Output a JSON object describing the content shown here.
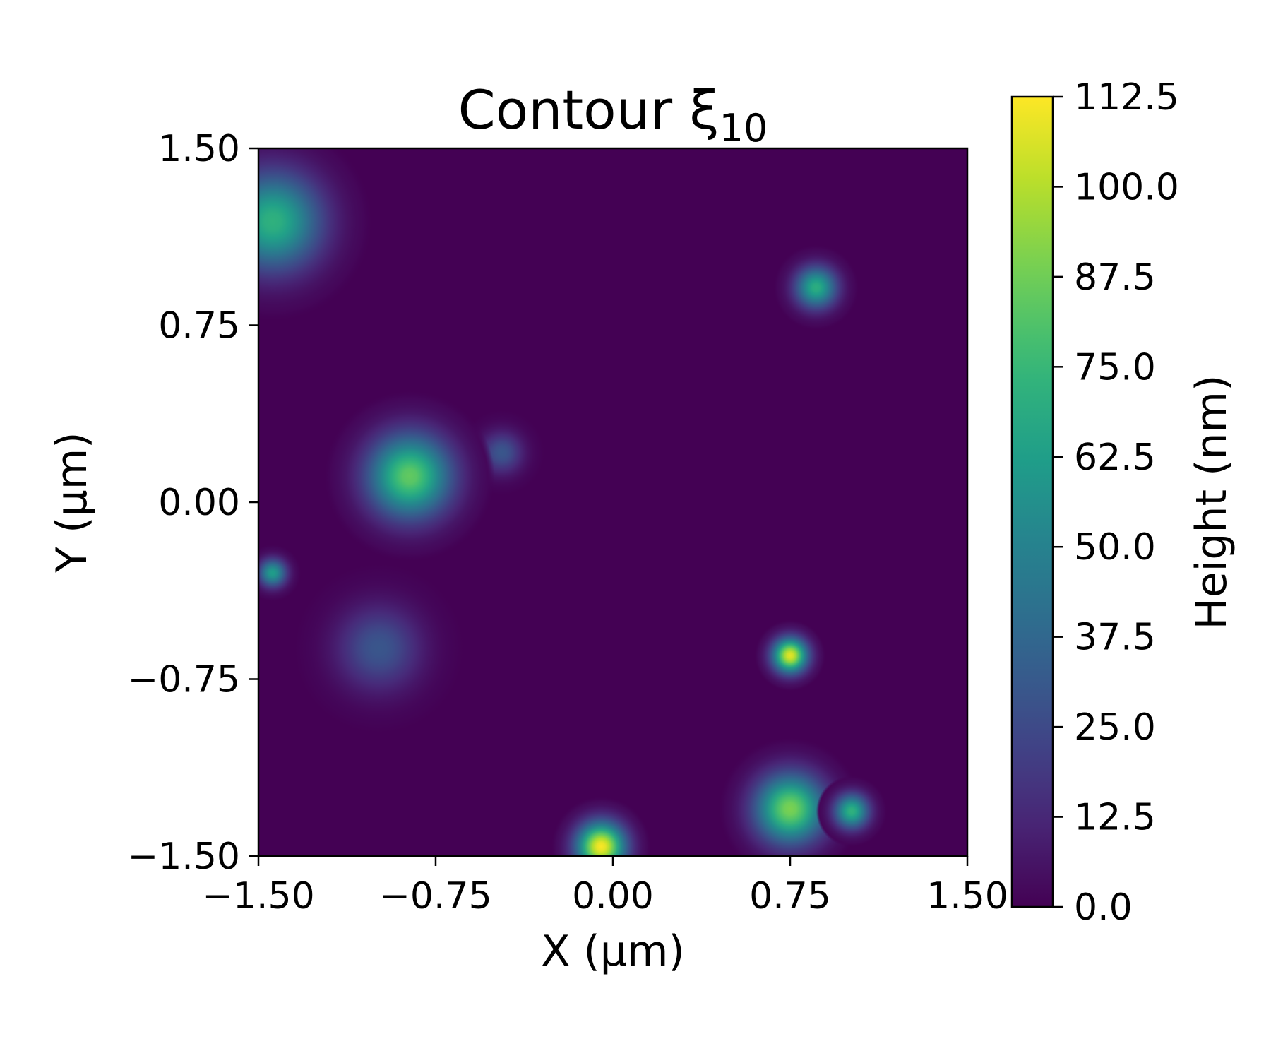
{
  "chart_data": {
    "type": "heatmap",
    "title": "Contour ξ",
    "title_subscript": "10",
    "xlabel": "X (μm)",
    "ylabel": "Y (μm)",
    "xlim": [
      -1.5,
      1.5
    ],
    "ylim": [
      -1.5,
      1.5
    ],
    "x_ticks": [
      -1.5,
      -0.75,
      0.0,
      0.75,
      1.5
    ],
    "y_ticks": [
      -1.5,
      -0.75,
      0.0,
      0.75,
      1.5
    ],
    "x_tick_labels": [
      "−1.50",
      "−0.75",
      "0.00",
      "0.75",
      "1.50"
    ],
    "y_tick_labels": [
      "−1.50",
      "−0.75",
      "0.00",
      "0.75",
      "1.50"
    ],
    "colormap": "viridis",
    "colorbar": {
      "label": "Height (nm)",
      "range": [
        0.0,
        112.5
      ],
      "ticks": [
        0.0,
        12.5,
        25.0,
        37.5,
        50.0,
        62.5,
        75.0,
        87.5,
        100.0,
        112.5
      ],
      "tick_labels": [
        "0.0",
        "12.5",
        "25.0",
        "37.5",
        "50.0",
        "62.5",
        "75.0",
        "87.5",
        "100.0",
        "112.5"
      ]
    },
    "grid": false,
    "peaks": [
      {
        "x": -1.44,
        "y": 1.19,
        "height": 72,
        "spread": 0.14
      },
      {
        "x": 0.86,
        "y": 0.91,
        "height": 70,
        "spread": 0.06
      },
      {
        "x": -0.47,
        "y": 0.21,
        "height": 30,
        "spread": 0.06
      },
      {
        "x": -0.86,
        "y": 0.11,
        "height": 85,
        "spread": 0.12
      },
      {
        "x": -1.44,
        "y": -0.3,
        "height": 62,
        "spread": 0.04
      },
      {
        "x": -0.99,
        "y": -0.62,
        "height": 30,
        "spread": 0.12
      },
      {
        "x": 0.75,
        "y": -0.65,
        "height": 108,
        "spread": 0.05
      },
      {
        "x": 0.75,
        "y": -1.3,
        "height": 90,
        "spread": 0.1
      },
      {
        "x": 1.01,
        "y": -1.31,
        "height": 72,
        "spread": 0.05
      },
      {
        "x": -0.05,
        "y": -1.46,
        "height": 112,
        "spread": 0.07
      }
    ]
  }
}
